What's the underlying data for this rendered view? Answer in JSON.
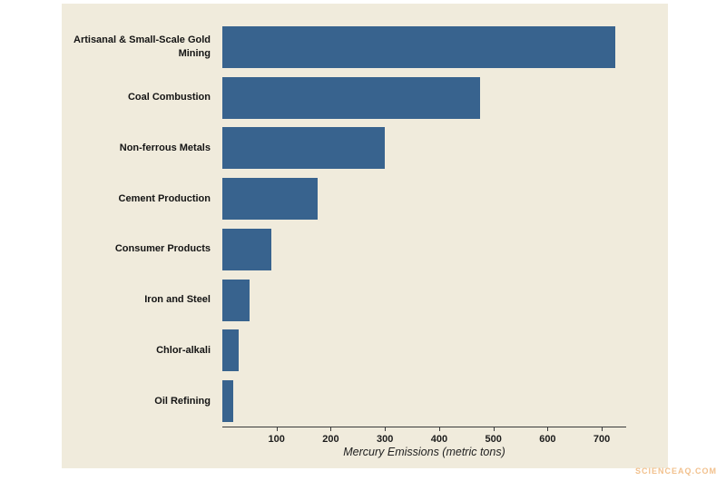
{
  "chart_data": {
    "type": "bar",
    "orientation": "horizontal",
    "categories": [
      "Artisanal & Small-Scale Gold Mining",
      "Coal Combustion",
      "Non-ferrous Metals",
      "Cement Production",
      "Consumer Products",
      "Iron and Steel",
      "Chlor-alkali",
      "Oil Refining"
    ],
    "values": [
      725,
      475,
      300,
      175,
      90,
      50,
      30,
      20
    ],
    "title": "",
    "xlabel": "Mercury Emissions (metric tons)",
    "ylabel": "",
    "x_ticks": [
      100,
      200,
      300,
      400,
      500,
      600,
      700
    ],
    "xlim": [
      0,
      745
    ],
    "grid": false,
    "legend": "none",
    "bar_color": "#38638e",
    "background_color": "#f0ebdc"
  },
  "watermark": "SCIENCEAQ.COM"
}
